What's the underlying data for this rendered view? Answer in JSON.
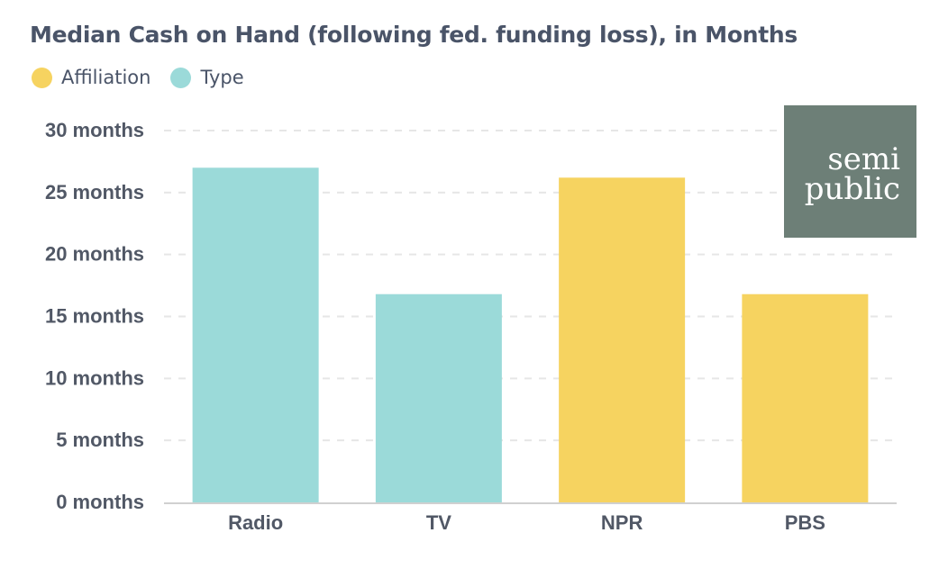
{
  "colors": {
    "affiliation": "#f6d360",
    "type": "#9bdad9",
    "logo_bg": "#6d7f77",
    "text": "#4a5468",
    "axis_text": "#515866",
    "grid": "#e6e6e6"
  },
  "legend": [
    {
      "label": "Affiliation",
      "color": "#f6d360"
    },
    {
      "label": "Type",
      "color": "#9bdad9"
    }
  ],
  "logo": {
    "line1": "semi",
    "line2": "public"
  },
  "chart_data": {
    "type": "bar",
    "title": "Median Cash on Hand (following fed. funding loss), in Months",
    "categories": [
      "Radio",
      "TV",
      "NPR",
      "PBS"
    ],
    "values": [
      27,
      16.8,
      26.2,
      16.8
    ],
    "bar_groups": [
      "Type",
      "Type",
      "Affiliation",
      "Affiliation"
    ],
    "ylim": [
      0,
      30
    ],
    "yticks": [
      0,
      5,
      10,
      15,
      20,
      25,
      30
    ],
    "ytick_labels": [
      "0 months",
      "5 months",
      "10 months",
      "15 months",
      "20 months",
      "25 months",
      "30 months"
    ],
    "xlabel": "",
    "ylabel": "",
    "grid": true,
    "legend_position": "top-left"
  }
}
